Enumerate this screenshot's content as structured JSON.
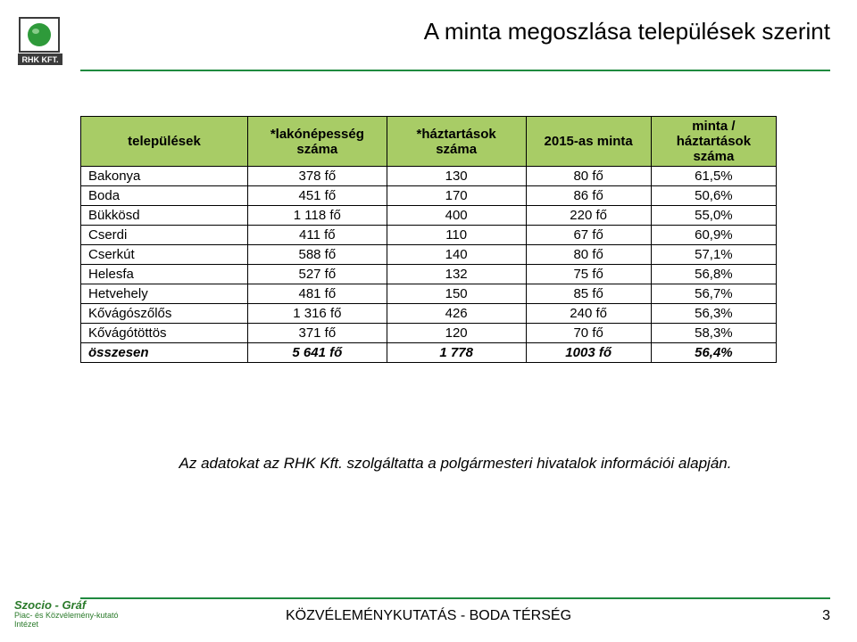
{
  "title": "A minta megoszlása települések szerint",
  "logo": {
    "brand_top": "RHK KFT.",
    "circle_color": "#2e9a3a",
    "border_color": "#3b3b3b"
  },
  "table": {
    "header_bg": "#a8cc66",
    "columns": [
      "települések",
      "*lakónépesség száma",
      "*háztartások száma",
      "2015-as minta",
      "minta / háztartások száma"
    ],
    "col_widths_pct": [
      24,
      20,
      20,
      18,
      18
    ],
    "rows": [
      {
        "name": "Bakonya",
        "pop": "378 fő",
        "hh": "130",
        "sample": "80 fő",
        "ratio": "61,5%"
      },
      {
        "name": "Boda",
        "pop": "451 fő",
        "hh": "170",
        "sample": "86 fő",
        "ratio": "50,6%"
      },
      {
        "name": "Bükkösd",
        "pop": "1 118 fő",
        "hh": "400",
        "sample": "220 fő",
        "ratio": "55,0%"
      },
      {
        "name": "Cserdi",
        "pop": "411 fő",
        "hh": "110",
        "sample": "67 fő",
        "ratio": "60,9%"
      },
      {
        "name": "Cserkút",
        "pop": "588 fő",
        "hh": "140",
        "sample": "80 fő",
        "ratio": "57,1%"
      },
      {
        "name": "Helesfa",
        "pop": "527 fő",
        "hh": "132",
        "sample": "75 fő",
        "ratio": "56,8%"
      },
      {
        "name": "Hetvehely",
        "pop": "481 fő",
        "hh": "150",
        "sample": "85 fő",
        "ratio": "56,7%"
      },
      {
        "name": "Kővágószőlős",
        "pop": "1 316 fő",
        "hh": "426",
        "sample": "240 fő",
        "ratio": "56,3%"
      },
      {
        "name": "Kővágótöttös",
        "pop": "371 fő",
        "hh": "120",
        "sample": "70 fő",
        "ratio": "58,3%"
      }
    ],
    "total": {
      "name": "összesen",
      "pop": "5 641 fő",
      "hh": "1 778",
      "sample": "1003  fő",
      "ratio": "56,4%"
    }
  },
  "note": "Az adatokat az RHK Kft. szolgáltatta a polgármesteri hivatalok információi alapján.",
  "footer": {
    "brand": "Szocio - Gráf",
    "sub1": "Piac- és Közvélemény-kutató",
    "sub2": "Intézet",
    "center": "KÖZVÉLEMÉNYKUTATÁS - BODA TÉRSÉG",
    "page": "3"
  },
  "colors": {
    "accent": "#1f8a3f"
  }
}
